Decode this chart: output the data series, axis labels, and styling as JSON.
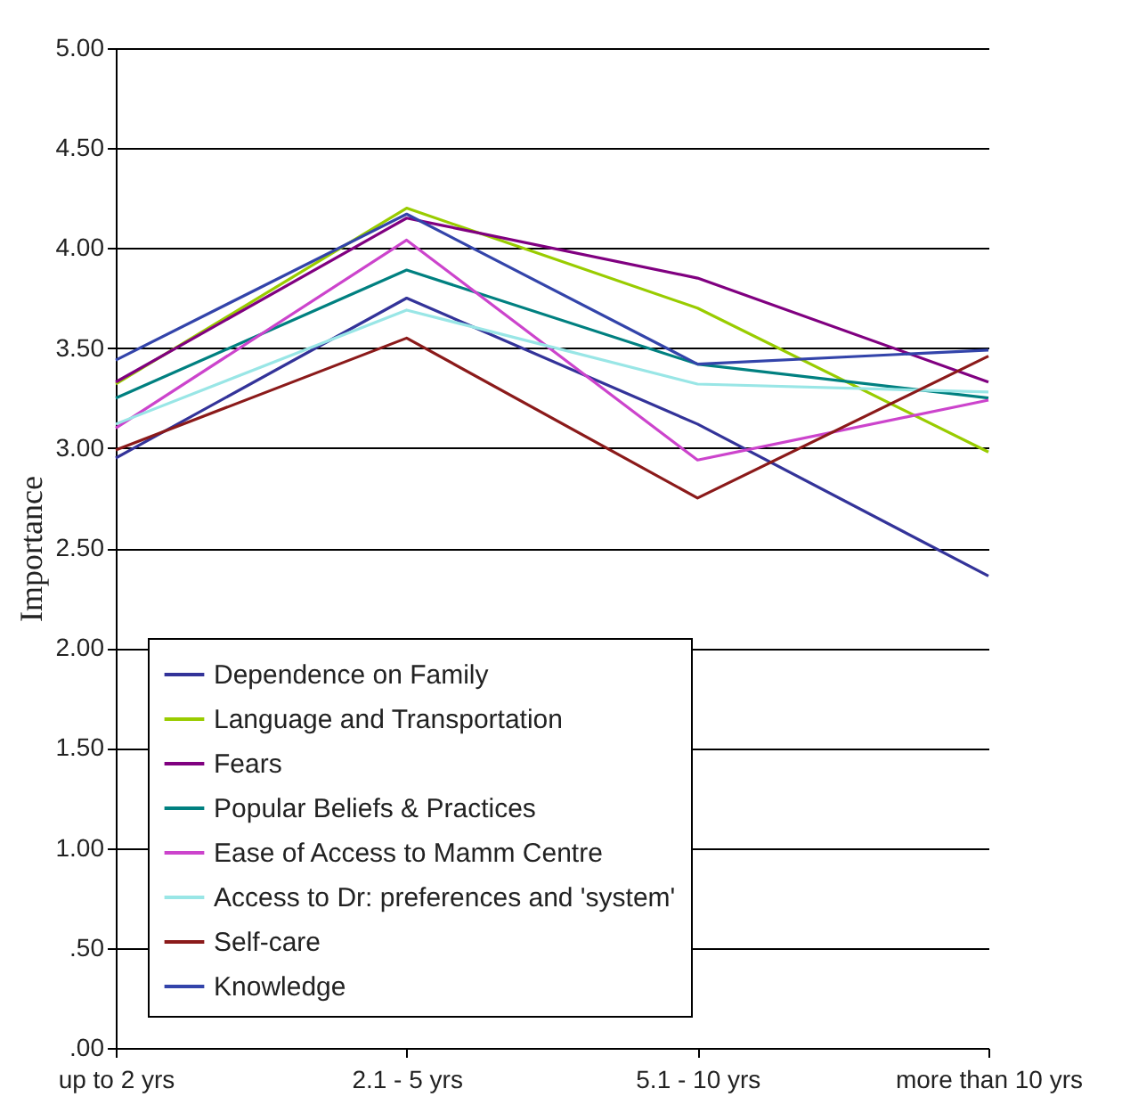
{
  "chart_data": {
    "type": "line",
    "ylabel": "Importance",
    "categories": [
      "up to 2 yrs",
      "2.1 - 5 yrs",
      "5.1 - 10 yrs",
      "more than 10 yrs"
    ],
    "series": [
      {
        "name": "Dependence on Family",
        "color": "#333399",
        "values": [
          2.95,
          3.75,
          3.12,
          2.36
        ]
      },
      {
        "name": "Language and Transportation",
        "color": "#99cc00",
        "values": [
          3.32,
          4.2,
          3.7,
          2.98
        ]
      },
      {
        "name": "Fears",
        "color": "#800080",
        "values": [
          3.33,
          4.15,
          3.85,
          3.33
        ]
      },
      {
        "name": "Popular Beliefs & Practices",
        "color": "#008080",
        "values": [
          3.25,
          3.89,
          3.42,
          3.25
        ]
      },
      {
        "name": "Ease of Access to Mamm Centre",
        "color": "#cc44cc",
        "values": [
          3.1,
          4.04,
          2.94,
          3.24
        ]
      },
      {
        "name": "Access to Dr: preferences and 'system'",
        "color": "#99e6e6",
        "values": [
          3.12,
          3.69,
          3.32,
          3.28
        ]
      },
      {
        "name": "Self-care",
        "color": "#8b1a1a",
        "values": [
          2.99,
          3.55,
          2.75,
          3.46
        ]
      },
      {
        "name": "Knowledge",
        "color": "#3344aa",
        "values": [
          3.44,
          4.17,
          3.42,
          3.49
        ]
      }
    ],
    "ylim": [
      0,
      5
    ],
    "yticks": [
      {
        "value": 0,
        "label": ".00"
      },
      {
        "value": 0.5,
        "label": ".50"
      },
      {
        "value": 1,
        "label": "1.00"
      },
      {
        "value": 1.5,
        "label": "1.50"
      },
      {
        "value": 2,
        "label": "2.00"
      },
      {
        "value": 2.5,
        "label": "2.50"
      },
      {
        "value": 3,
        "label": "3.00"
      },
      {
        "value": 3.5,
        "label": "3.50"
      },
      {
        "value": 4,
        "label": "4.00"
      },
      {
        "value": 4.5,
        "label": "4.50"
      },
      {
        "value": 5,
        "label": "5.00"
      }
    ],
    "grid": "y",
    "legend": "bottom left",
    "marker": "none",
    "line_style": "solid"
  }
}
